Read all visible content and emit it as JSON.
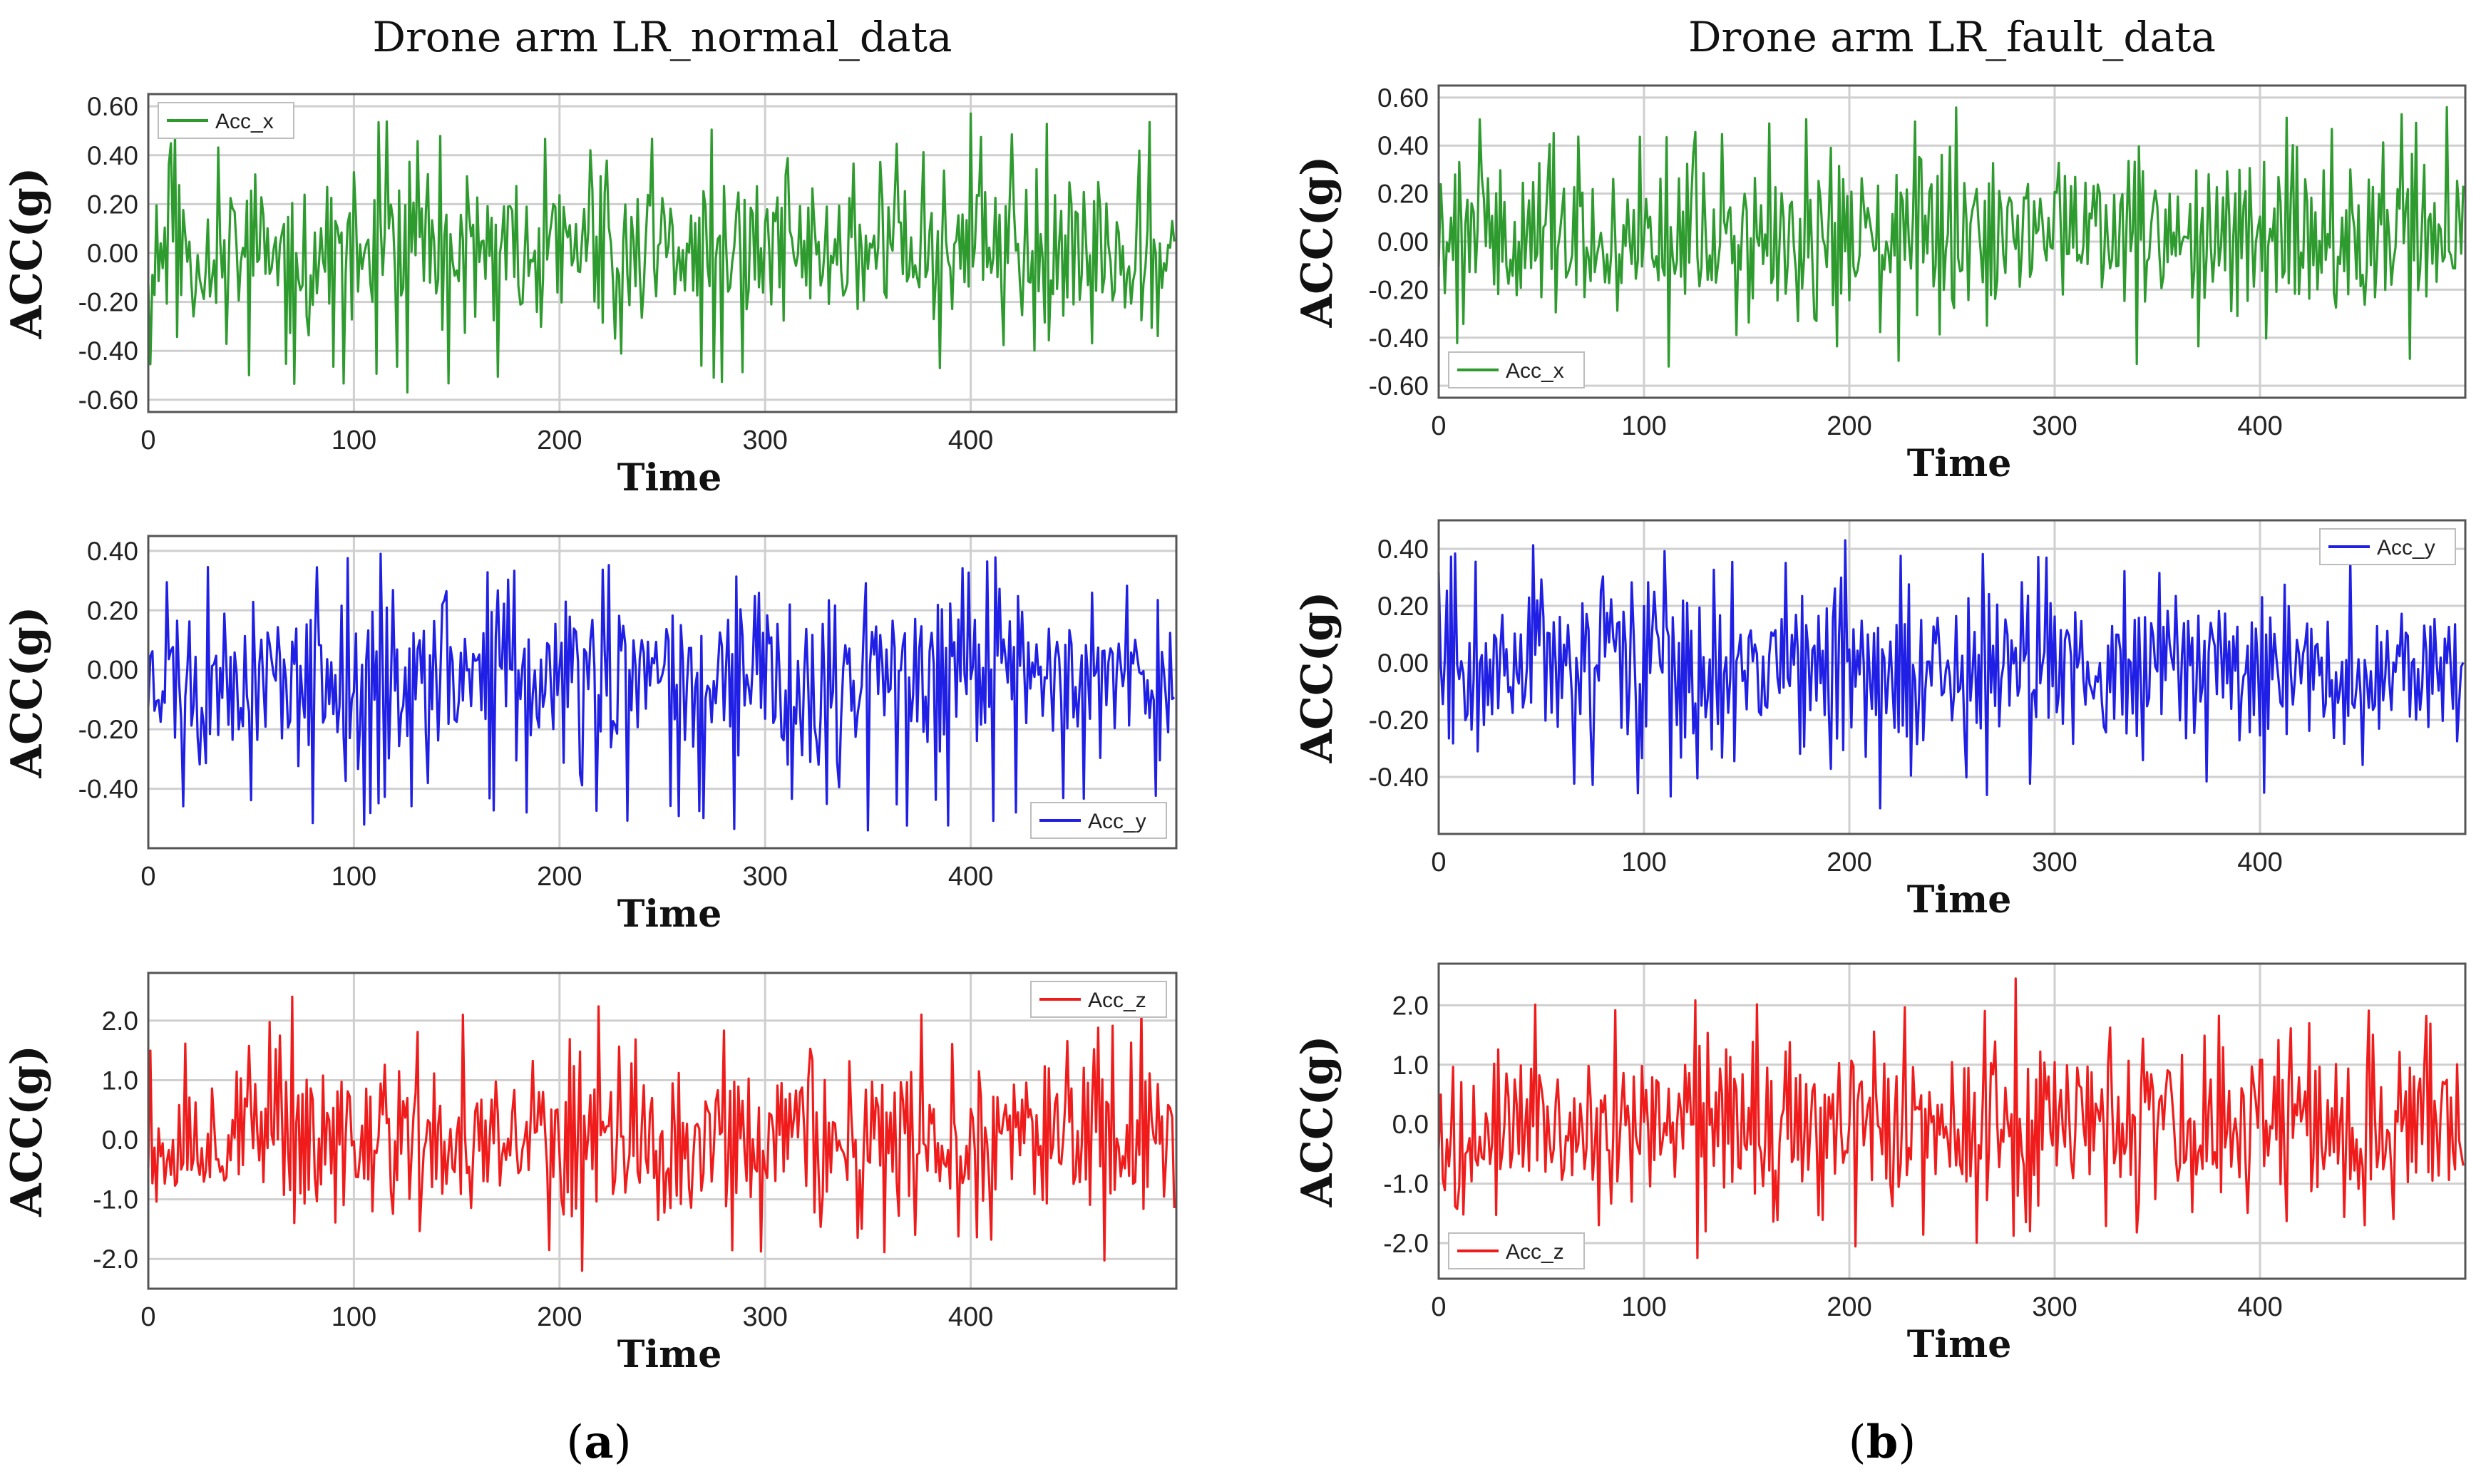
{
  "figure": {
    "panel_labels": [
      "a",
      "b"
    ],
    "colors": {
      "acc_x": "#2e9b2e",
      "acc_y": "#1f1fe6",
      "acc_z": "#f01c1c",
      "grid": "#cfcfcf",
      "frame": "#555555"
    }
  },
  "chart_data": [
    {
      "type": "line",
      "panel": "a",
      "title": "Drone arm LR_normal_data",
      "xlabel": "Time",
      "ylabel": "ACC(g)",
      "series_name": "Acc_x",
      "color": "#2e9b2e",
      "legend_position": "top-left",
      "xlim": [
        0,
        500
      ],
      "ylim": [
        -0.65,
        0.65
      ],
      "xticks": [
        0,
        100,
        200,
        300,
        400
      ],
      "yticks": [
        0.6,
        0.4,
        0.2,
        0.0,
        -0.2,
        -0.4,
        -0.6
      ],
      "ytick_labels": [
        "0.60",
        "0.40",
        "0.20",
        "0.00",
        "-0.20",
        "-0.40",
        "-0.60"
      ],
      "length": 500,
      "amplitude": 0.2,
      "peak_max": 0.57,
      "peak_min": -0.57,
      "seed": 11
    },
    {
      "type": "line",
      "panel": "a",
      "title": "",
      "xlabel": "Time",
      "ylabel": "ACC(g)",
      "series_name": "Acc_y",
      "color": "#1f1fe6",
      "legend_position": "bottom-right",
      "xlim": [
        0,
        500
      ],
      "ylim": [
        -0.6,
        0.45
      ],
      "xticks": [
        0,
        100,
        200,
        300,
        400
      ],
      "yticks": [
        0.4,
        0.2,
        0.0,
        -0.2,
        -0.4
      ],
      "ytick_labels": [
        "0.40",
        "0.20",
        "0.00",
        "-0.20",
        "-0.40"
      ],
      "length": 500,
      "amplitude": 0.15,
      "peak_max": 0.39,
      "peak_min": -0.54,
      "seed": 23
    },
    {
      "type": "line",
      "panel": "a",
      "title": "",
      "xlabel": "Time",
      "ylabel": "ACC(g)",
      "series_name": "Acc_z",
      "color": "#f01c1c",
      "legend_position": "top-right",
      "xlim": [
        0,
        500
      ],
      "ylim": [
        -2.5,
        2.8
      ],
      "xticks": [
        0,
        100,
        200,
        300,
        400
      ],
      "yticks": [
        2.0,
        1.0,
        0.0,
        -1.0,
        -2.0
      ],
      "ytick_labels": [
        "2.0",
        "1.0",
        "0.0",
        "-1.0",
        "-2.0"
      ],
      "length": 500,
      "amplitude": 0.75,
      "peak_max": 2.4,
      "peak_min": -2.2,
      "seed": 37
    },
    {
      "type": "line",
      "panel": "b",
      "title": "Drone arm LR_fault_data",
      "xlabel": "Time",
      "ylabel": "ACC(g)",
      "series_name": "Acc_x",
      "color": "#2e9b2e",
      "legend_position": "bottom-left",
      "xlim": [
        0,
        500
      ],
      "ylim": [
        -0.65,
        0.65
      ],
      "xticks": [
        0,
        100,
        200,
        300,
        400
      ],
      "yticks": [
        0.6,
        0.4,
        0.2,
        0.0,
        -0.2,
        -0.4,
        -0.6
      ],
      "ytick_labels": [
        "0.60",
        "0.40",
        "0.20",
        "0.00",
        "-0.20",
        "-0.40",
        "-0.60"
      ],
      "length": 500,
      "amplitude": 0.17,
      "peak_max": 0.56,
      "peak_min": -0.52,
      "seed": 41
    },
    {
      "type": "line",
      "panel": "b",
      "title": "",
      "xlabel": "Time",
      "ylabel": "ACC(g)",
      "series_name": "Acc_y",
      "color": "#1f1fe6",
      "legend_position": "top-right",
      "xlim": [
        0,
        500
      ],
      "ylim": [
        -0.6,
        0.5
      ],
      "xticks": [
        0,
        100,
        200,
        300,
        400
      ],
      "yticks": [
        0.4,
        0.2,
        0.0,
        -0.2,
        -0.4
      ],
      "ytick_labels": [
        "0.40",
        "0.20",
        "0.00",
        "-0.20",
        "-0.40"
      ],
      "length": 500,
      "amplitude": 0.15,
      "peak_max": 0.43,
      "peak_min": -0.51,
      "seed": 53
    },
    {
      "type": "line",
      "panel": "b",
      "title": "",
      "xlabel": "Time",
      "ylabel": "ACC(g)",
      "series_name": "Acc_z",
      "color": "#f01c1c",
      "legend_position": "bottom-left",
      "xlim": [
        0,
        500
      ],
      "ylim": [
        -2.6,
        2.7
      ],
      "xticks": [
        0,
        100,
        200,
        300,
        400
      ],
      "yticks": [
        2.0,
        1.0,
        0.0,
        -1.0,
        -2.0
      ],
      "ytick_labels": [
        "2.0",
        "1.0",
        "0.0",
        "-1.0",
        "-2.0"
      ],
      "length": 500,
      "amplitude": 0.75,
      "peak_max": 2.45,
      "peak_min": -2.25,
      "seed": 67
    }
  ]
}
